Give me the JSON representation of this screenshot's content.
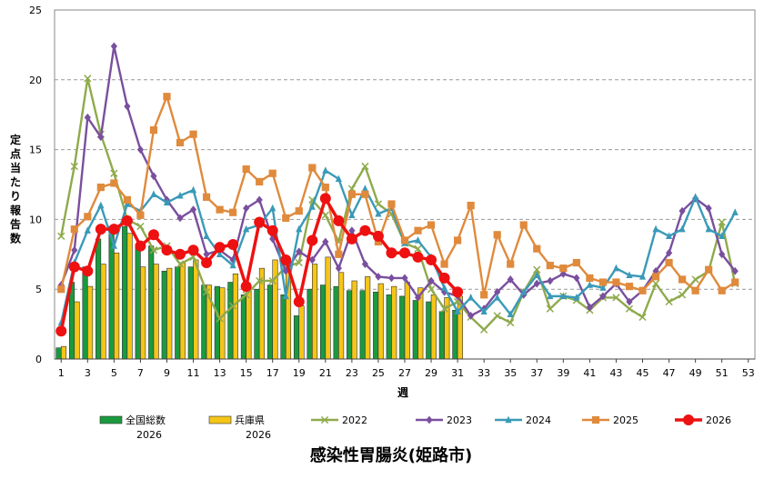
{
  "chart_data": {
    "type": "bar+line",
    "title": "感染性胃腸炎(姫路市)",
    "xlabel": "週",
    "ylabel": "定点当たり報告数",
    "xlim": [
      1,
      53
    ],
    "ylim": [
      0,
      25
    ],
    "y_ticks": [
      0,
      5,
      10,
      15,
      20,
      25
    ],
    "x_ticks": [
      1,
      3,
      5,
      7,
      9,
      11,
      13,
      15,
      17,
      19,
      21,
      23,
      25,
      27,
      29,
      31,
      33,
      35,
      37,
      39,
      41,
      43,
      45,
      47,
      49,
      51,
      53
    ],
    "grid": "horizontal dashed",
    "legend_position": "bottom",
    "bar_series": [
      {
        "name": "全国総数\n2026",
        "color": "#1a9a3e",
        "weeks": [
          1,
          2,
          3,
          4,
          5,
          6,
          7,
          8,
          9,
          10,
          11,
          12,
          13,
          14,
          15,
          16,
          17,
          18,
          19,
          20,
          21,
          22,
          23,
          24,
          25,
          26,
          27,
          28,
          29,
          30,
          31
        ],
        "values": [
          0.8,
          5.5,
          6.6,
          8.6,
          9.5,
          9.5,
          8.1,
          8.1,
          6.3,
          6.6,
          6.6,
          5.3,
          5.2,
          5.5,
          4.6,
          5.0,
          5.3,
          4.6,
          3.1,
          5.0,
          5.3,
          5.2,
          4.9,
          4.9,
          4.8,
          4.6,
          4.5,
          4.2,
          4.1,
          3.4,
          3.5
        ]
      },
      {
        "name": "兵庫県\n2026",
        "color": "#f5c518",
        "weeks": [
          1,
          2,
          3,
          4,
          5,
          6,
          7,
          8,
          9,
          10,
          11,
          12,
          13,
          14,
          15,
          16,
          17,
          18,
          19,
          20,
          21,
          22,
          23,
          24,
          25,
          26,
          27,
          28,
          29,
          30,
          31
        ],
        "values": [
          0.9,
          4.1,
          5.2,
          6.8,
          7.6,
          9.0,
          6.6,
          6.8,
          6.5,
          6.9,
          7.1,
          5.3,
          5.1,
          6.1,
          5.1,
          6.5,
          7.1,
          6.6,
          3.8,
          6.8,
          7.3,
          6.2,
          5.6,
          5.9,
          5.4,
          5.2,
          5.5,
          5.1,
          4.6,
          4.4,
          4.5
        ]
      }
    ],
    "line_series": [
      {
        "name": "2022",
        "color": "#8faa4c",
        "marker": "x",
        "x": [
          1,
          2,
          3,
          4,
          5,
          6,
          7,
          8,
          9,
          10,
          11,
          12,
          13,
          14,
          15,
          16,
          17,
          18,
          19,
          20,
          21,
          22,
          23,
          24,
          25,
          26,
          27,
          28,
          29,
          30,
          31,
          32,
          33,
          34,
          35,
          36,
          37,
          38,
          39,
          40,
          41,
          42,
          43,
          44,
          45,
          46,
          47,
          48,
          49,
          50,
          51,
          52
        ],
        "values": [
          8.8,
          13.8,
          20.1,
          16.1,
          13.3,
          10.0,
          9.5,
          7.8,
          8.1,
          6.8,
          7.3,
          4.8,
          2.9,
          3.8,
          4.6,
          5.6,
          5.6,
          6.6,
          6.9,
          11.4,
          10.3,
          8.4,
          12.2,
          13.8,
          11.1,
          10.4,
          8.3,
          7.9,
          5.0,
          3.6,
          4.1,
          3.0,
          2.1,
          3.1,
          2.6,
          4.8,
          6.4,
          3.6,
          4.5,
          4.2,
          3.5,
          4.4,
          4.4,
          3.6,
          3.0,
          5.4,
          4.1,
          4.6,
          5.7,
          6.3,
          9.8,
          5.4
        ]
      },
      {
        "name": "2023",
        "color": "#7a4f9e",
        "marker": "diamond",
        "x": [
          1,
          2,
          3,
          4,
          5,
          6,
          7,
          8,
          9,
          10,
          11,
          12,
          13,
          14,
          15,
          16,
          17,
          18,
          19,
          20,
          21,
          22,
          23,
          24,
          25,
          26,
          27,
          28,
          29,
          30,
          31,
          32,
          33,
          34,
          35,
          36,
          37,
          38,
          39,
          40,
          41,
          42,
          43,
          44,
          45,
          46,
          47,
          48,
          49,
          50,
          51,
          52
        ],
        "values": [
          5.3,
          7.8,
          17.3,
          15.9,
          22.4,
          18.1,
          15.0,
          13.1,
          11.4,
          10.1,
          10.7,
          7.5,
          7.8,
          7.1,
          10.8,
          11.4,
          8.6,
          6.3,
          7.7,
          7.1,
          8.4,
          6.5,
          9.2,
          6.8,
          5.9,
          5.8,
          5.8,
          4.4,
          5.6,
          4.8,
          4.5,
          3.1,
          3.6,
          4.8,
          5.7,
          4.6,
          5.4,
          5.6,
          6.1,
          5.8,
          3.7,
          4.5,
          5.4,
          4.1,
          4.9,
          6.3,
          7.6,
          10.6,
          11.5,
          10.8,
          7.5,
          6.3
        ]
      },
      {
        "name": "2024",
        "color": "#3a9ab8",
        "marker": "triangle",
        "x": [
          1,
          2,
          3,
          4,
          5,
          6,
          7,
          8,
          9,
          10,
          11,
          12,
          13,
          14,
          15,
          16,
          17,
          18,
          19,
          20,
          21,
          22,
          23,
          24,
          25,
          26,
          27,
          28,
          29,
          30,
          31,
          32,
          33,
          34,
          35,
          36,
          37,
          38,
          39,
          40,
          41,
          42,
          43,
          44,
          45,
          46,
          47,
          48,
          49,
          50,
          51,
          52
        ],
        "values": [
          2.6,
          6.9,
          9.2,
          11.0,
          8.1,
          11.1,
          10.6,
          11.8,
          11.2,
          11.7,
          12.1,
          8.8,
          7.5,
          6.7,
          9.3,
          9.6,
          10.8,
          4.5,
          9.3,
          10.9,
          13.5,
          12.9,
          10.3,
          12.2,
          10.4,
          10.8,
          8.3,
          8.5,
          7.3,
          5.1,
          3.4,
          4.4,
          3.4,
          4.4,
          3.2,
          4.8,
          6.0,
          4.5,
          4.5,
          4.4,
          5.3,
          5.1,
          6.5,
          6.0,
          5.9,
          9.3,
          8.8,
          9.3,
          11.6,
          9.3,
          8.8,
          10.5
        ]
      },
      {
        "name": "2025",
        "color": "#e08a3c",
        "marker": "square",
        "x": [
          1,
          2,
          3,
          4,
          5,
          6,
          7,
          8,
          9,
          10,
          11,
          12,
          13,
          14,
          15,
          16,
          17,
          18,
          19,
          20,
          21,
          22,
          23,
          24,
          25,
          26,
          27,
          28,
          29,
          30,
          31,
          32,
          33,
          34,
          35,
          36,
          37,
          38,
          39,
          40,
          41,
          42,
          43,
          44,
          45,
          46,
          47,
          48,
          49,
          50,
          51,
          52
        ],
        "values": [
          5.0,
          9.3,
          10.2,
          12.3,
          12.6,
          11.4,
          10.3,
          16.4,
          18.8,
          15.5,
          16.1,
          11.6,
          10.7,
          10.5,
          13.6,
          12.7,
          13.3,
          10.1,
          10.6,
          13.7,
          12.3,
          7.5,
          11.8,
          11.8,
          8.4,
          11.1,
          8.5,
          9.2,
          9.6,
          6.8,
          8.5,
          11.0,
          4.6,
          8.9,
          6.8,
          9.6,
          7.9,
          6.7,
          6.5,
          6.9,
          5.8,
          5.5,
          5.5,
          5.2,
          4.9,
          5.9,
          6.9,
          5.7,
          4.9,
          6.4,
          4.9,
          5.5
        ]
      },
      {
        "name": "2026",
        "color": "#ee1111",
        "marker": "circle",
        "x": [
          1,
          2,
          3,
          4,
          5,
          6,
          7,
          8,
          9,
          10,
          11,
          12,
          13,
          14,
          15,
          16,
          17,
          18,
          19,
          20,
          21,
          22,
          23,
          24,
          25,
          26,
          27,
          28,
          29,
          30,
          31
        ],
        "values": [
          2.0,
          6.6,
          6.3,
          9.3,
          9.3,
          9.9,
          8.1,
          8.9,
          7.8,
          7.5,
          7.8,
          6.9,
          8.0,
          8.2,
          5.2,
          9.8,
          9.2,
          7.1,
          4.1,
          8.5,
          11.5,
          9.9,
          8.6,
          9.2,
          8.8,
          7.6,
          7.6,
          7.3,
          7.1,
          5.8,
          4.8
        ]
      }
    ]
  }
}
